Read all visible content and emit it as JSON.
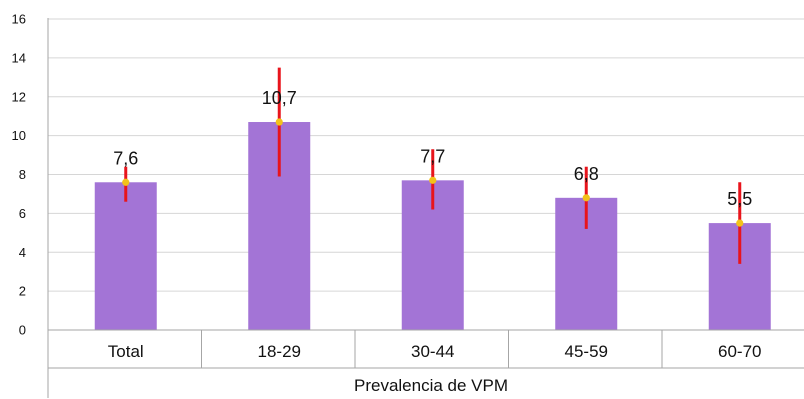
{
  "chart_data": {
    "type": "bar",
    "categories": [
      "Total",
      "18-29",
      "30-44",
      "45-59",
      "60-70"
    ],
    "values": [
      7.6,
      10.7,
      7.7,
      6.8,
      5.5
    ],
    "value_labels": [
      "7,6",
      "10,7",
      "7,7",
      "6,8",
      "5,5"
    ],
    "error_bars": [
      {
        "low": 6.6,
        "high": 8.4
      },
      {
        "low": 7.9,
        "high": 13.5
      },
      {
        "low": 6.2,
        "high": 9.3
      },
      {
        "low": 5.2,
        "high": 8.4
      },
      {
        "low": 3.4,
        "high": 7.6
      }
    ],
    "title": "",
    "xlabel": "Prevalencia de VPM",
    "ylabel": "",
    "ylim": [
      0,
      16
    ],
    "yticks": [
      0,
      2,
      4,
      6,
      8,
      10,
      12,
      14,
      16
    ],
    "grid": "horizontal",
    "colors": {
      "bar": "#a374d6",
      "error_bar": "#e8141c",
      "marker": "#f2c21b",
      "grid": "#d6d6d6",
      "axis": "#a6a6a6"
    }
  }
}
